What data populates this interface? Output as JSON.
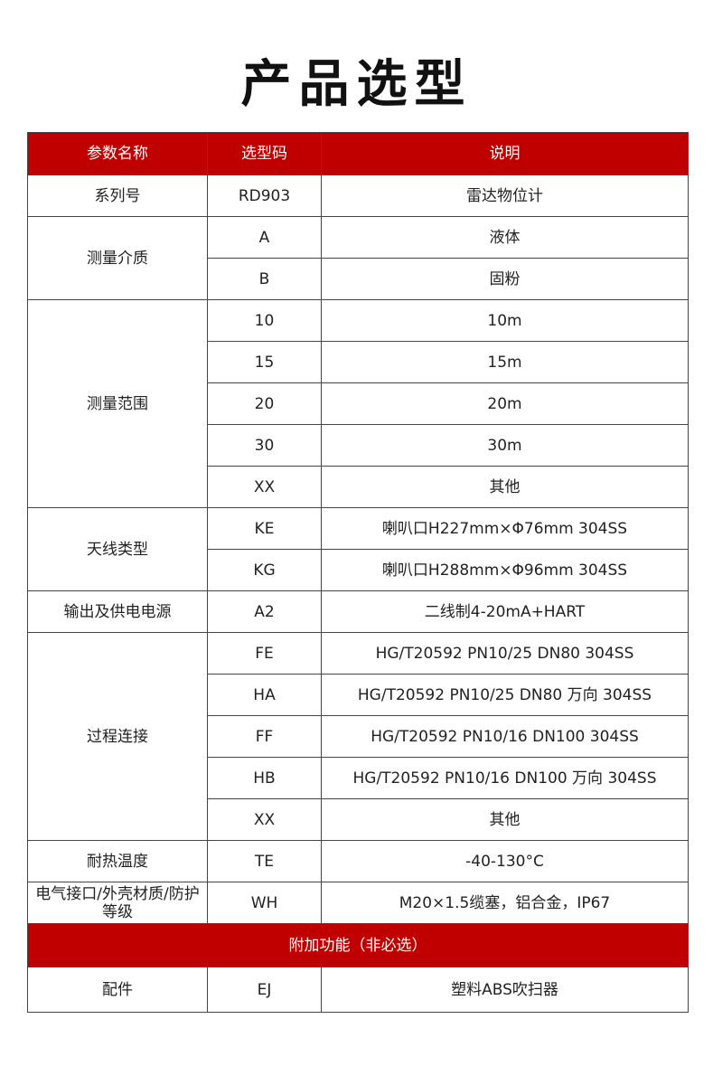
{
  "title": "产品选型",
  "accent_color": "#c00000",
  "headers": [
    "参数名称",
    "选型码",
    "说明"
  ],
  "groups": [
    {
      "name": "系列号",
      "rows": [
        [
          "RD903",
          "雷达物位计"
        ]
      ]
    },
    {
      "name": "测量介质",
      "rows": [
        [
          "A",
          "液体"
        ],
        [
          "B",
          "固粉"
        ]
      ]
    },
    {
      "name": "测量范围",
      "rows": [
        [
          "10",
          "10m"
        ],
        [
          "15",
          "15m"
        ],
        [
          "20",
          "20m"
        ],
        [
          "30",
          "30m"
        ],
        [
          "XX",
          "其他"
        ]
      ]
    },
    {
      "name": "天线类型",
      "rows": [
        [
          "KE",
          "喇叭口H227mm×Φ76mm 304SS"
        ],
        [
          "KG",
          "喇叭口H288mm×Φ96mm 304SS"
        ]
      ]
    },
    {
      "name": "输出及供电电源",
      "rows": [
        [
          "A2",
          "二线制4-20mA+HART"
        ]
      ]
    },
    {
      "name": "过程连接",
      "rows": [
        [
          "FE",
          "HG/T20592 PN10/25 DN80 304SS"
        ],
        [
          "HA",
          "HG/T20592 PN10/25 DN80 万向 304SS"
        ],
        [
          "FF",
          "HG/T20592 PN10/16 DN100 304SS"
        ],
        [
          "HB",
          "HG/T20592 PN10/16 DN100 万向 304SS"
        ],
        [
          "XX",
          "其他"
        ]
      ]
    },
    {
      "name": "耐热温度",
      "rows": [
        [
          "TE",
          "-40-130°C"
        ]
      ]
    },
    {
      "name": "电气接口/外壳材质/防护等级",
      "rows": [
        [
          "WH",
          "M20×1.5缆塞，铝合金，IP67"
        ]
      ]
    }
  ],
  "section": "附加功能（非必选）",
  "extra_groups": [
    {
      "name": "配件",
      "rows": [
        [
          "EJ",
          "塑料ABS吹扫器"
        ]
      ]
    }
  ]
}
